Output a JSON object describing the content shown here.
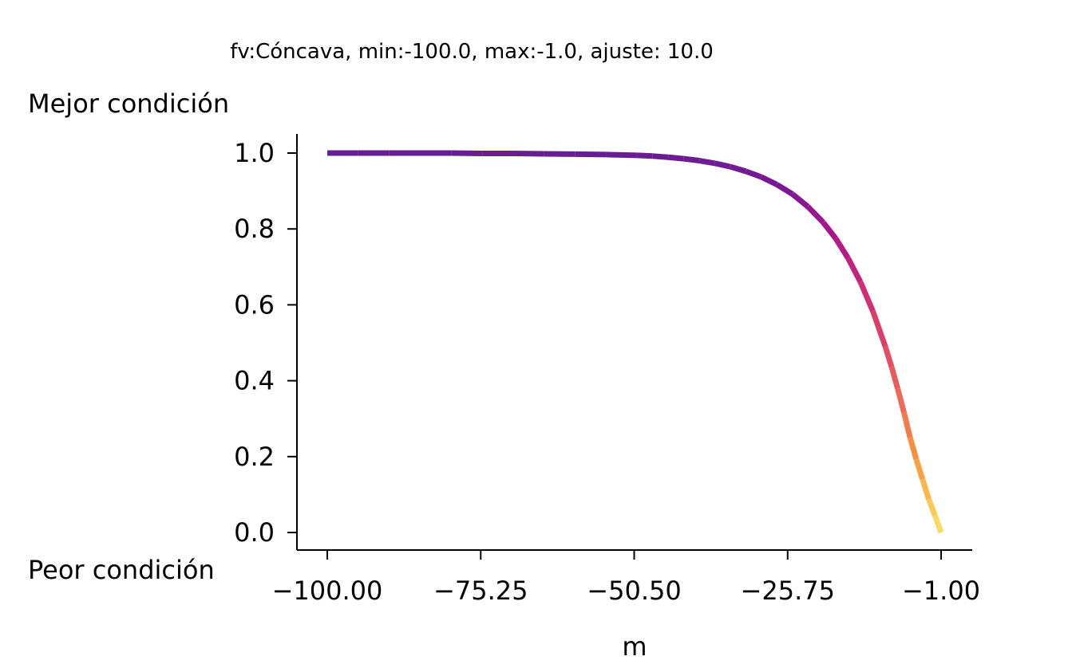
{
  "chart_data": {
    "type": "line",
    "title": "fv:Cóncava, min:-100.0, max:-1.0, ajuste: 10.0",
    "best_label": "Mejor condición",
    "worst_label": "Peor condición",
    "xlabel": "m",
    "ylabel": "",
    "xlim": [
      -100.0,
      -1.0
    ],
    "ylim": [
      0.0,
      1.0
    ],
    "x_ticks": [
      -100.0,
      -75.25,
      -50.5,
      -25.75,
      -1.0
    ],
    "x_tick_labels": [
      "−100.00",
      "−75.25",
      "−50.50",
      "−25.75",
      "−1.00"
    ],
    "y_ticks": [
      0.0,
      0.2,
      0.4,
      0.6,
      0.8,
      1.0
    ],
    "y_tick_labels": [
      "0.0",
      "0.2",
      "0.4",
      "0.6",
      "0.8",
      "1.0"
    ],
    "grid": false,
    "colormap": "plasma",
    "series": [
      {
        "x": [
          -100.0,
          -95.0,
          -90.0,
          -85.0,
          -80.0,
          -75.0,
          -70.0,
          -65.0,
          -60.0,
          -55.0,
          -50.0,
          -47.5,
          -45.0,
          -42.5,
          -40.0,
          -37.5,
          -35.0,
          -32.5,
          -30.0,
          -27.5,
          -25.0,
          -22.5,
          -20.0,
          -18.0,
          -16.0,
          -14.0,
          -12.0,
          -10.0,
          -9.0,
          -8.0,
          -7.0,
          -6.0,
          -5.0,
          -4.0,
          -3.0,
          -2.0,
          -1.0
        ],
        "y": [
          1.0,
          1.0,
          1.0,
          1.0,
          1.0,
          0.999,
          0.999,
          0.998,
          0.997,
          0.996,
          0.994,
          0.992,
          0.989,
          0.985,
          0.98,
          0.973,
          0.964,
          0.952,
          0.937,
          0.917,
          0.892,
          0.859,
          0.817,
          0.775,
          0.723,
          0.66,
          0.583,
          0.49,
          0.437,
          0.379,
          0.317,
          0.25,
          0.193,
          0.14,
          0.088,
          0.045,
          0.0
        ]
      }
    ]
  }
}
